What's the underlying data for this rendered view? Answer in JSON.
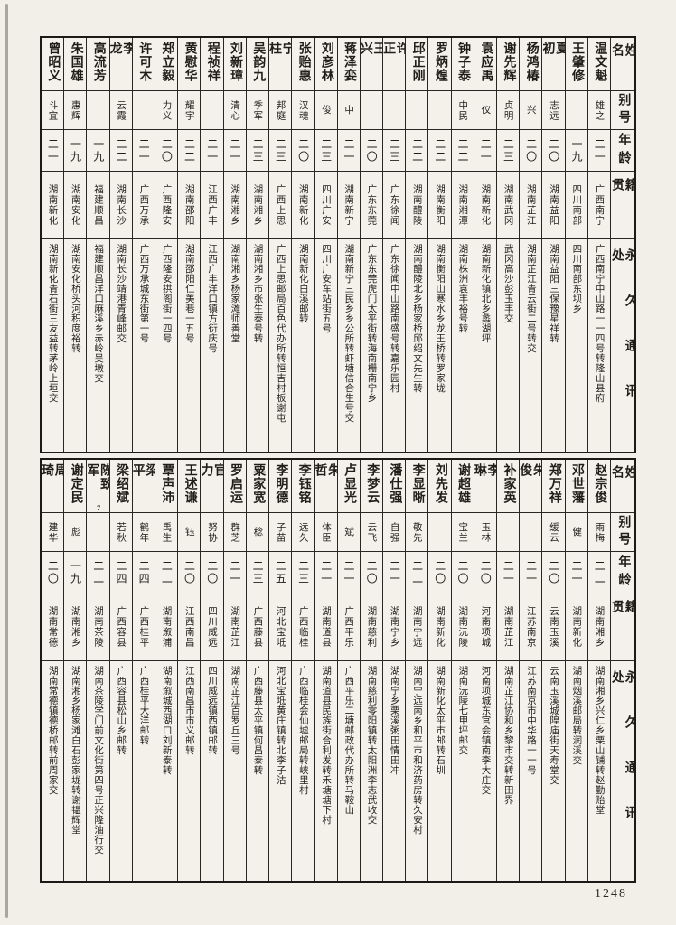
{
  "page": {
    "number": "1248"
  },
  "colors": {
    "paper": "#f2efe8",
    "ink": "#211e1a"
  },
  "row_labels": {
    "name": "姓名",
    "alias": "别号",
    "age": "年龄",
    "native": "籍贯",
    "address": "永久通讯处"
  },
  "sections": [
    {
      "persons": [
        {
          "name": "温文魁",
          "alias": "雄之",
          "age": "二一",
          "native": "广西南宁",
          "address": "广西南宁中山路一一四号转隆山县府"
        },
        {
          "name": "王肇修",
          "alias": "",
          "age": "一九",
          "native": "四川南部",
          "address": "四川南部东坝乡"
        },
        {
          "name": "夏初",
          "alias": "志远",
          "age": "二〇",
          "native": "湖南益阳",
          "address": "湖南益阳三保豫星祥转"
        },
        {
          "name": "杨鸿椿",
          "alias": "兴",
          "age": "二〇",
          "native": "湖南芷江",
          "address": "湖南芷江青云街二号转交"
        },
        {
          "name": "谢先辉",
          "alias": "贞明",
          "age": "二三",
          "native": "湖南武冈",
          "address": "武冈高沙彭玉丰交"
        },
        {
          "name": "袁应禹",
          "alias": "仪",
          "age": "二一",
          "native": "湖南新化",
          "address": "湖南新化镇北乡蠡湖坪"
        },
        {
          "name": "钟子泰",
          "alias": "中民",
          "age": "二二",
          "native": "湖南湘潭",
          "address": "湖南株洲袁丰裕号转"
        },
        {
          "name": "罗炳煌",
          "alias": "",
          "age": "二二",
          "native": "湖南衡阳",
          "address": "湖南衡阳山寒水乡龙王桥转罗家垅"
        },
        {
          "name": "邱正刚",
          "alias": "",
          "age": "二二",
          "native": "湖南醴陵",
          "address": "湖南醴陵北乡杨家桥邱绍文先生转"
        },
        {
          "name": "许正",
          "alias": "",
          "age": "二三",
          "native": "广东徐闻",
          "address": "广东徐闻中山路南盛号转嘉乐园村"
        },
        {
          "name": "王兴",
          "alias": "",
          "age": "二〇",
          "native": "广东东莞",
          "address": "广东东莞虎门太平街转海南栅南宁乡"
        },
        {
          "name": "蒋泽娈",
          "alias": "中",
          "age": "二一",
          "native": "湖南新宁",
          "address": "湖南新宁三民乡乡公所转虾塘信合生号交"
        },
        {
          "name": "刘彦林",
          "alias": "俊",
          "age": "二三",
          "native": "四川广安",
          "address": "四川广安车站街五号"
        },
        {
          "name": "张贻惠",
          "alias": "汉魂",
          "age": "二〇",
          "native": "湖南新化",
          "address": "湖南新化白溪邮转"
        },
        {
          "name": "宁柱",
          "alias": "邦庭",
          "age": "二三",
          "native": "广西上思",
          "address": "广西上思邮局百色代办所转恒吉村板谢屯"
        },
        {
          "name": "吴韵九",
          "alias": "季军",
          "age": "二三",
          "native": "湖南湘乡",
          "address": "湖南湘乡市张生泰号转"
        },
        {
          "name": "刘新璋",
          "alias": "清心",
          "age": "二一",
          "native": "湖南湘乡",
          "address": "湖南湘乡杨家滩师善堂"
        },
        {
          "name": "程祯祥",
          "alias": "",
          "age": "二一",
          "native": "江西广丰",
          "address": "江西广丰洋口镇方衍庆号"
        },
        {
          "name": "黄慰华",
          "alias": "耀宇",
          "age": "二二",
          "native": "湖南邵阳",
          "address": "湖南邵阳仁美巷一五号"
        },
        {
          "name": "郑立毅",
          "alias": "力义",
          "age": "二〇",
          "native": "广西隆安",
          "address": "广西隆安拱阁街一四号"
        },
        {
          "name": "许可木",
          "alias": "",
          "age": "二一",
          "native": "广西万承",
          "address": "广西万承城东街第一号"
        },
        {
          "name": "李龙",
          "alias": "云霞",
          "age": "二二",
          "native": "湖南长沙",
          "address": "湖南长沙靖港青峰邮交"
        },
        {
          "name": "高流芳",
          "alias": "",
          "age": "一九",
          "native": "福建顺昌",
          "address": "福建顺昌洋口麻溪乡赤岭吴墩交"
        },
        {
          "name": "朱国雄",
          "alias": "惠辉",
          "age": "一九",
          "native": "湖南安化",
          "address": "湖南安化桥头河积度裕转"
        },
        {
          "name": "曾昭义",
          "alias": "斗宜",
          "age": "二一",
          "native": "湖南新化",
          "address": "湖南新化青石街三友益转茅岭上垣交"
        }
      ]
    },
    {
      "persons": [
        {
          "name": "赵宗俊",
          "alias": "雨梅",
          "age": "二二",
          "native": "湖南湘乡",
          "address": "湖南湘乡兴仁乡栗山铺转赵勤贻堂"
        },
        {
          "name": "邓世藩",
          "alias": "健",
          "age": "二一",
          "native": "湖南新化",
          "address": "湖南烟溪邮局转润溪交"
        },
        {
          "name": "郑万祥",
          "alias": "缓云",
          "age": "二〇",
          "native": "云南玉溪",
          "address": "云南玉溪城隍庙街天寿堂交"
        },
        {
          "name": "朱俊",
          "alias": "",
          "age": "二一",
          "native": "江苏南京",
          "address": "江苏南京市中华路一一号"
        },
        {
          "name": "补家英",
          "alias": "",
          "age": "二一",
          "native": "湖南芷江",
          "address": "湖南芷江协和乡黎市交转新田界"
        },
        {
          "name": "李琳",
          "alias": "玉林",
          "age": "二〇",
          "native": "河南项城",
          "address": "河南项城东官会镇南李大庄交"
        },
        {
          "name": "谢超雄",
          "alias": "宝兰",
          "age": "二〇",
          "native": "湖南沅陵",
          "address": "湖南沅陵七甲坪邮交"
        },
        {
          "name": "刘先发",
          "alias": "",
          "age": "二〇",
          "native": "湖南新化",
          "address": "湖南新化太平市邮转石圳"
        },
        {
          "name": "李显晰",
          "alias": "敬先",
          "age": "二二",
          "native": "湖南宁远",
          "address": "湖南宁远南乡和平市和济药房转久安村"
        },
        {
          "name": "潘仕强",
          "alias": "自强",
          "age": "二一",
          "native": "湖南宁乡",
          "address": "湖南宁乡栗溪粥田情田冲"
        },
        {
          "name": "李梦云",
          "alias": "云飞",
          "age": "二〇",
          "native": "湖南慈利",
          "address": "湖南慈利零阳镇转太阳洲李志武收交"
        },
        {
          "name": "卢显光",
          "alias": "斌",
          "age": "二一",
          "native": "广西平乐",
          "address": "广西平乐二塘邮政代办所转马鞍山"
        },
        {
          "name": "朱哲",
          "alias": "体臣",
          "age": "二一",
          "native": "湖南道县",
          "address": "湖南道县民族街合利发转禾塘塘下村"
        },
        {
          "name": "李钰铭",
          "alias": "远久",
          "age": "二三",
          "native": "广西临桂",
          "address": "广西临桂会仙墟邮局转峡里村"
        },
        {
          "name": "李明德",
          "alias": "子苗",
          "age": "二五",
          "native": "河北宝坻",
          "address": "河北宝坻黄庄镇转北李子沽"
        },
        {
          "name": "粟家宽",
          "alias": "稔",
          "age": "二三",
          "native": "广西藤县",
          "address": "广西藤县太平镇何昌泰转"
        },
        {
          "name": "罗启运",
          "alias": "群芝",
          "age": "二一",
          "native": "湖南芷江",
          "address": "湖南芷江百罗丘三号"
        },
        {
          "name": "官力",
          "alias": "努协",
          "age": "二〇",
          "native": "四川威远",
          "address": "四川威远镇西镇邮转"
        },
        {
          "name": "王述谦",
          "alias": "钰",
          "age": "二〇",
          "native": "江西南昌",
          "address": "江西南昌市市义邮转"
        },
        {
          "name": "覃声沛",
          "alias": "禹生",
          "age": "二二",
          "native": "湖南溆浦",
          "address": "湖南溆城西湖口刘新泰转"
        },
        {
          "name": "梁平",
          "alias": "鹤年",
          "age": "二四",
          "native": "广西桂平",
          "address": "广西桂平大洋邮转"
        },
        {
          "name": "梁绍斌",
          "alias": "若秋",
          "age": "二四",
          "native": "广西容县",
          "address": "广西容县松山乡邮转"
        },
        {
          "name": "陈致军",
          "alias": "",
          "mark": "7",
          "age": "二二",
          "native": "湖南茶陵",
          "address": "湖南茶陵学门前文化街第四号正兴隆油行交"
        },
        {
          "name": "谢定民",
          "alias": "彪",
          "age": "一九",
          "native": "湖南湘乡",
          "address": "湖南湘乡杨家滩白石彭家垅转谢韫辉堂"
        },
        {
          "name": "周琦",
          "alias": "建华",
          "age": "二〇",
          "native": "湖南常德",
          "address": "湖南常德镇德桥邮转前周家交"
        }
      ]
    }
  ]
}
